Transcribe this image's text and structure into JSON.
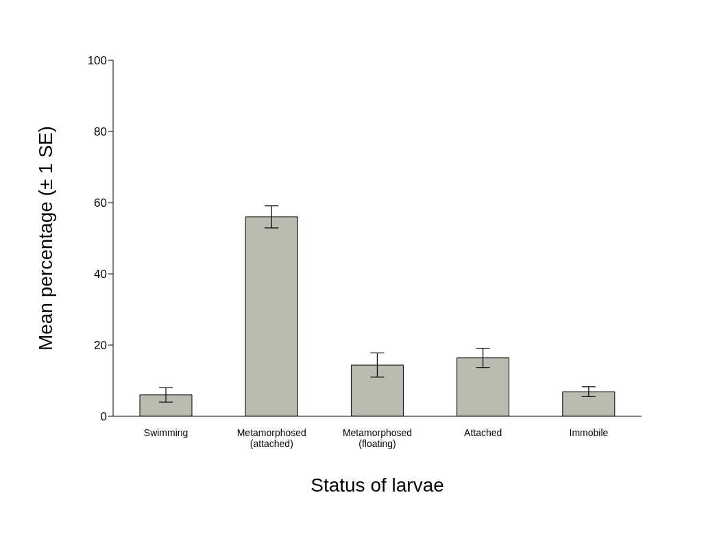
{
  "chart_data": {
    "type": "bar",
    "xlabel": "Status of larvae",
    "ylabel": "Mean percentage (± 1 SE)",
    "categories": [
      "Swimming",
      "Metamorphosed\n(attached)",
      "Metamorphosed\n(floating)",
      "Attached",
      "Immobile"
    ],
    "values": [
      6.0,
      56.0,
      14.4,
      16.4,
      6.9
    ],
    "errors": [
      2.0,
      3.1,
      3.4,
      2.7,
      1.4
    ],
    "color": "#bcbbb0",
    "ylim": [
      0,
      100
    ],
    "yticks": [
      0,
      20,
      40,
      60,
      80,
      100
    ],
    "grid": false,
    "legend": false
  }
}
